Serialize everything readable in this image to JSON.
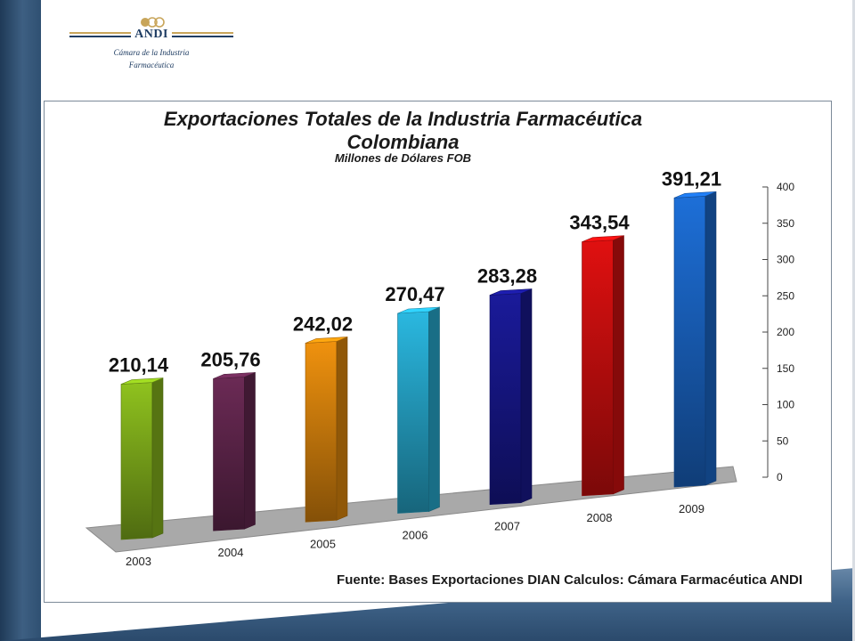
{
  "logo": {
    "brand": "ANDI",
    "subtitle_line1": "Cámara de la Industria",
    "subtitle_line2": "Farmacéutica"
  },
  "colors": {
    "band": "#2f5072",
    "frame": "#7c8a99"
  },
  "chart_data": {
    "type": "bar",
    "title": "Exportaciones Totales de la Industria Farmacéutica Colombiana",
    "title_line1": "Exportaciones Totales de la Industria Farmacéutica",
    "title_line2": "Colombiana",
    "subtitle": "Millones de Dólares FOB",
    "categories": [
      "2003",
      "2004",
      "2005",
      "2006",
      "2007",
      "2008",
      "2009"
    ],
    "values": [
      210.14,
      205.76,
      242.02,
      270.47,
      283.28,
      343.54,
      391.21
    ],
    "value_labels": [
      "210,14",
      "205,76",
      "242,02",
      "270,47",
      "283,28",
      "343,54",
      "391,21"
    ],
    "bar_colors": [
      "#8fc21e",
      "#6b2a55",
      "#f0920e",
      "#2ab8e0",
      "#1a1a9a",
      "#e01010",
      "#1d6fd8"
    ],
    "ylim": [
      0,
      400
    ],
    "yticks": [
      0,
      50,
      100,
      150,
      200,
      250,
      300,
      350,
      400
    ],
    "grid": false,
    "legend": "none",
    "source": "Fuente:  Bases Exportaciones DIAN Calculos: Cámara Farmacéutica ANDI"
  }
}
